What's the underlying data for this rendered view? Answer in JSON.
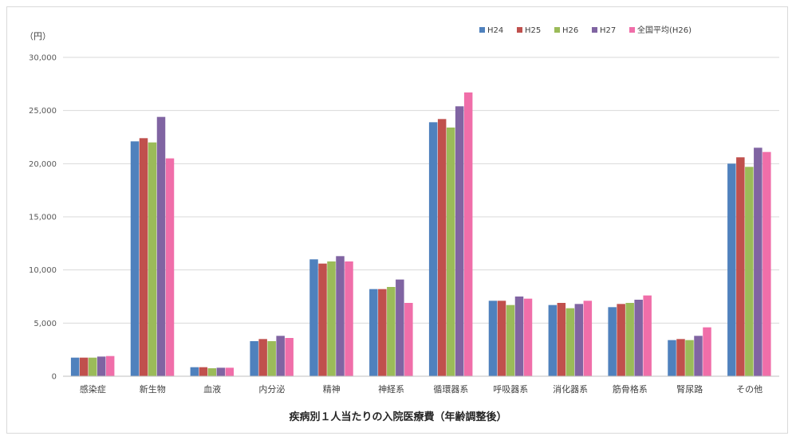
{
  "chart_data": {
    "type": "bar",
    "title": "疾病別１人当たりの入院医療費（年齢調整後）",
    "unit_label": "（円）",
    "ylim": [
      0,
      30000
    ],
    "yticks": [
      "0",
      "5,000",
      "10,000",
      "15,000",
      "20,000",
      "25,000",
      "30,000"
    ],
    "grid": true,
    "legend_position": "top-right",
    "categories": [
      "感染症",
      "新生物",
      "血液",
      "内分泌",
      "精神",
      "神経系",
      "循環器系",
      "呼吸器系",
      "消化器系",
      "筋骨格系",
      "腎尿路",
      "その他"
    ],
    "series": [
      {
        "name": "H24",
        "color": "#4f81bd",
        "values": [
          1750,
          22100,
          850,
          3300,
          11000,
          8200,
          23900,
          7100,
          6700,
          6500,
          3400,
          20000
        ]
      },
      {
        "name": "H25",
        "color": "#c0504d",
        "values": [
          1750,
          22400,
          850,
          3500,
          10600,
          8200,
          24200,
          7100,
          6900,
          6800,
          3500,
          20600
        ]
      },
      {
        "name": "H26",
        "color": "#9bbb59",
        "values": [
          1750,
          22000,
          750,
          3300,
          10800,
          8400,
          23400,
          6700,
          6400,
          6900,
          3400,
          19700
        ]
      },
      {
        "name": "H27",
        "color": "#8064a2",
        "values": [
          1850,
          24400,
          800,
          3800,
          11300,
          9100,
          25400,
          7500,
          6800,
          7200,
          3800,
          21500
        ]
      },
      {
        "name": "全国平均(H26)",
        "color": "#f06ea9",
        "values": [
          1900,
          20500,
          800,
          3600,
          10800,
          6900,
          26700,
          7300,
          7100,
          7600,
          4600,
          21100
        ]
      }
    ]
  }
}
